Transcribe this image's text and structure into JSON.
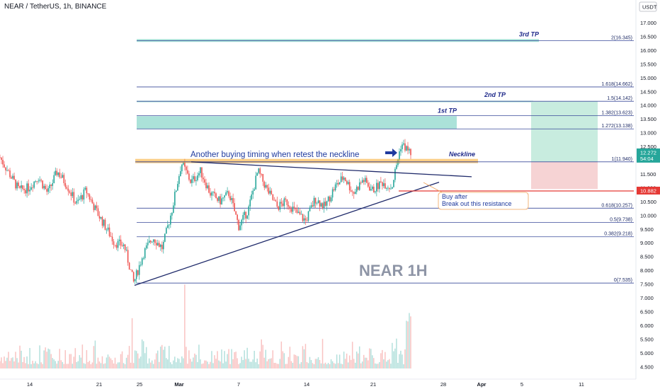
{
  "header": {
    "symbol_title": "NEAR / TetherUS, 1h, BINANCE",
    "currency": "USDT"
  },
  "colors": {
    "up": "#26a69a",
    "down": "#ef5350",
    "fib_line": "#3a4a9a",
    "tp_zone": "#8fd8cc",
    "neckline": "#f5a623",
    "resistance": "#e53935"
  },
  "chart_data": {
    "type": "candlestick",
    "title": "NEAR / TetherUS, 1h, BINANCE",
    "y_axis": {
      "ticks": [
        "17.000",
        "16.500",
        "16.000",
        "15.500",
        "15.000",
        "14.500",
        "14.000",
        "13.500",
        "13.000",
        "12.500",
        "12.000",
        "11.500",
        "11.000",
        "10.500",
        "10.000",
        "9.500",
        "9.000",
        "8.500",
        "8.000",
        "7.500",
        "7.000",
        "6.500",
        "6.000",
        "5.500",
        "5.000",
        "4.500"
      ],
      "range": [
        4.2,
        17.3
      ]
    },
    "x_axis": {
      "ticks": [
        "14",
        "21",
        "25",
        "Mar",
        "7",
        "14",
        "21",
        "28",
        "Apr",
        "5",
        "11"
      ]
    },
    "price_path": [
      [
        "Feb 11",
        12.1
      ],
      [
        "Feb 12",
        11.5
      ],
      [
        "Feb 13",
        10.9
      ],
      [
        "Feb 14",
        11.0
      ],
      [
        "Feb 15",
        11.4
      ],
      [
        "Feb 16",
        10.8
      ],
      [
        "Feb 17",
        11.6
      ],
      [
        "Feb 18",
        11.1
      ],
      [
        "Feb 19",
        10.4
      ],
      [
        "Feb 20",
        10.9
      ],
      [
        "Feb 21",
        10.2
      ],
      [
        "Feb 22",
        9.6
      ],
      [
        "Feb 23",
        9.0
      ],
      [
        "Feb 24",
        8.9
      ],
      [
        "Feb 25",
        7.54
      ],
      [
        "Feb 26",
        8.6
      ],
      [
        "Feb 27",
        9.2
      ],
      [
        "Feb 28",
        8.8
      ],
      [
        "Mar 1",
        10.2
      ],
      [
        "Mar 2",
        11.9
      ],
      [
        "Mar 3",
        11.2
      ],
      [
        "Mar 4",
        11.6
      ],
      [
        "Mar 5",
        10.8
      ],
      [
        "Mar 6",
        10.5
      ],
      [
        "Mar 7",
        10.8
      ],
      [
        "Mar 8",
        9.6
      ],
      [
        "Mar 9",
        10.2
      ],
      [
        "Mar 10",
        11.6
      ],
      [
        "Mar 11",
        10.9
      ],
      [
        "Mar 12",
        10.3
      ],
      [
        "Mar 13",
        10.5
      ],
      [
        "Mar 14",
        10.1
      ],
      [
        "Mar 15",
        9.8
      ],
      [
        "Mar 16",
        10.6
      ],
      [
        "Mar 17",
        10.3
      ],
      [
        "Mar 18",
        11.0
      ],
      [
        "Mar 19",
        11.4
      ],
      [
        "Mar 20",
        10.8
      ],
      [
        "Mar 21",
        11.3
      ],
      [
        "Mar 22",
        10.9
      ],
      [
        "Mar 23",
        11.2
      ],
      [
        "Mar 24",
        11.0
      ],
      [
        "Mar 24.5",
        12.6
      ],
      [
        "Mar 25",
        12.27
      ]
    ],
    "current_price": {
      "value": "12.272",
      "countdown": "54:04"
    },
    "resistance": {
      "value": 10.882,
      "label": "10.882"
    },
    "neckline": {
      "value": 11.94,
      "label": "Neckline"
    },
    "fib_levels": [
      {
        "label": "2(16.345)",
        "value": 16.345
      },
      {
        "label": "1.618(14.662)",
        "value": 14.662
      },
      {
        "label": "1.5(14.142)",
        "value": 14.142
      },
      {
        "label": "1.382(13.623)",
        "value": 13.623
      },
      {
        "label": "1.272(13.138)",
        "value": 13.138
      },
      {
        "label": "1(11.940)",
        "value": 11.94
      },
      {
        "label": "0.618(10.257)",
        "value": 10.257
      },
      {
        "label": "0.5(9.738)",
        "value": 9.738
      },
      {
        "label": "0.382(9.218)",
        "value": 9.218
      },
      {
        "label": "0(7.535)",
        "value": 7.535
      }
    ],
    "targets": [
      {
        "label": "1st TP",
        "value": 13.138
      },
      {
        "label": "2nd TP",
        "value": 14.142
      },
      {
        "label": "3rd TP",
        "value": 16.345
      }
    ],
    "annotations": {
      "retest": "Another buying timing when retest the neckline",
      "neckline": "Neckline",
      "buy_line1": "Buy after",
      "buy_line2": "Break out this resistance",
      "watermark": "NEAR 1H"
    }
  }
}
